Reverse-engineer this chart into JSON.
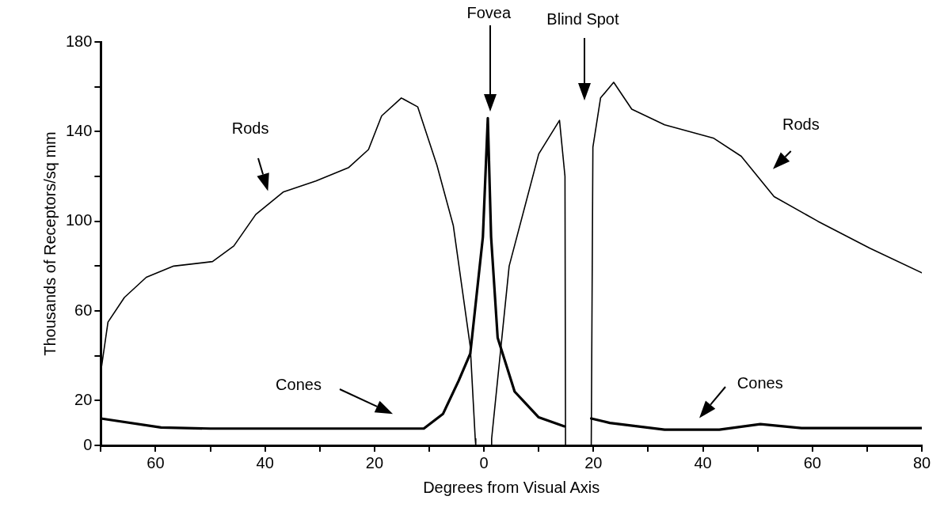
{
  "chart_data": {
    "type": "line",
    "xlabel": "Degrees from Visual Axis",
    "ylabel": "Thousands of Receptors/sq mm",
    "xlim": [
      -70,
      80
    ],
    "ylim": [
      0,
      180
    ],
    "xticks": [
      {
        "value": -70,
        "label": null
      },
      {
        "value": -60,
        "label": "60"
      },
      {
        "value": -50,
        "label": null
      },
      {
        "value": -40,
        "label": "40"
      },
      {
        "value": -30,
        "label": null
      },
      {
        "value": -20,
        "label": "20"
      },
      {
        "value": -10,
        "label": null
      },
      0,
      {
        "value": 10,
        "label": null
      },
      20,
      {
        "value": 30,
        "label": null
      },
      40,
      {
        "value": 50,
        "label": null
      },
      60,
      {
        "value": 70,
        "label": null
      },
      80
    ],
    "yticks": [
      0,
      20,
      {
        "value": 40,
        "label": null
      },
      60,
      {
        "value": 80,
        "label": null
      },
      100,
      {
        "value": 120,
        "label": null
      },
      140,
      {
        "value": 160,
        "label": null
      },
      180
    ],
    "grid": false,
    "legend": false,
    "marker": "none",
    "line_style": "solid",
    "series": [
      {
        "color": "#000000",
        "x": [
          -70,
          -68.7,
          -65.7,
          -61.7,
          -56.7,
          -49.6,
          -45.7,
          -41.7,
          -36.7,
          -30.7,
          -24.7,
          -21.1,
          -18.7,
          -15.1,
          -12.1,
          -8.6,
          -5.6,
          -2.5,
          -1.6,
          -1.5,
          0,
          1.3,
          1.4,
          4.6,
          10,
          13.8,
          14.8,
          14.9,
          17,
          19.6,
          19.9,
          21.3,
          23.7,
          27,
          33,
          42,
          47,
          53,
          61,
          70.5,
          80
        ],
        "values": [
          33,
          55,
          66,
          75,
          80,
          82,
          89,
          103,
          113,
          118,
          124,
          132,
          147,
          155,
          151,
          125,
          98,
          44,
          3,
          0,
          null,
          0,
          3,
          80,
          130,
          145,
          120,
          0,
          null,
          0,
          133,
          155,
          162,
          150,
          143,
          137,
          129,
          111,
          100,
          88,
          77
        ]
      },
      {
        "color": "#000000",
        "x": [
          -70,
          -59,
          -50,
          -40,
          -30,
          -20,
          -11,
          -7.5,
          -4.6,
          -2.5,
          -0.2,
          0.7,
          1.3,
          2.5,
          5.6,
          10,
          14.7,
          17,
          19.6,
          23,
          33,
          43,
          50.5,
          58,
          70,
          80
        ],
        "values": [
          12,
          8,
          7.5,
          7.5,
          7.5,
          7.5,
          7.5,
          14,
          29,
          41,
          93,
          146,
          93,
          48,
          24,
          12.5,
          8.5,
          null,
          12,
          10,
          7,
          7,
          9.5,
          7.7,
          7.7,
          7.7
        ]
      }
    ],
    "annotations": [
      "Rods",
      "Cones",
      "Fovea",
      "Blind Spot",
      "Rods",
      "Cones"
    ]
  }
}
